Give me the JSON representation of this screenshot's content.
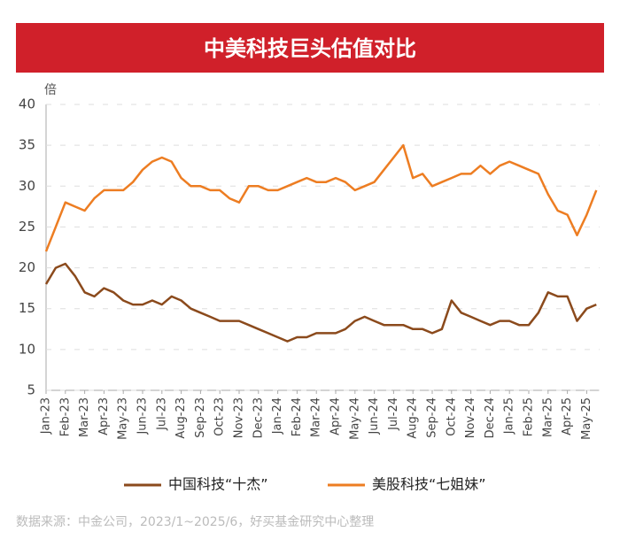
{
  "chart_data": {
    "type": "line",
    "title": "中美科技巨头估值对比",
    "y_unit": "倍",
    "source": "数据来源：中金公司，2023/1~2025/6，好买基金研究中心整理",
    "categories": [
      "Jan-23",
      null,
      "Feb-23",
      null,
      "Mar-23",
      null,
      "Apr-23",
      null,
      "May-23",
      null,
      "Jun-23",
      null,
      "Jul-23",
      null,
      "Aug-23",
      null,
      "Sep-23",
      null,
      "Oct-23",
      null,
      "Nov-23",
      null,
      "Dec-23",
      null,
      "Jan-24",
      null,
      "Feb-24",
      null,
      "Mar-24",
      null,
      "Apr-24",
      null,
      "May-24",
      null,
      "Jun-24",
      null,
      "Jul-24",
      null,
      "Aug-24",
      null,
      "Sep-24",
      null,
      "Oct-24",
      null,
      "Nov-24",
      null,
      "Dec-24",
      null,
      "Jan-25",
      null,
      "Feb-25",
      null,
      "Mar-25",
      null,
      "Apr-25",
      null,
      "May-25",
      null
    ],
    "series": [
      {
        "name": "中国科技“十杰”",
        "color": "#8b4a1c",
        "values": [
          18,
          20,
          20.5,
          19,
          17,
          16.5,
          17.5,
          17,
          16,
          15.5,
          15.5,
          16,
          15.5,
          16.5,
          16,
          15,
          14.5,
          14,
          13.5,
          13.5,
          13.5,
          13,
          12.5,
          12,
          11.5,
          11,
          11.5,
          11.5,
          12,
          12,
          12,
          12.5,
          13.5,
          14,
          13.5,
          13,
          13,
          13,
          12.5,
          12.5,
          12,
          12.5,
          16,
          14.5,
          14,
          13.5,
          13,
          13.5,
          13.5,
          13,
          13,
          14.5,
          17,
          16.5,
          16.5,
          13.5,
          15,
          15.5
        ]
      },
      {
        "name": "美股科技“七姐妹”",
        "color": "#ed7d22",
        "values": [
          22,
          25,
          28,
          27.5,
          27,
          28.5,
          29.5,
          29.5,
          29.5,
          30.5,
          32,
          33,
          33.5,
          33,
          31,
          30,
          30,
          29.5,
          29.5,
          28.5,
          28,
          30,
          30,
          29.5,
          29.5,
          30,
          30.5,
          31,
          30.5,
          30.5,
          31,
          30.5,
          29.5,
          30,
          30.5,
          32,
          33.5,
          35,
          31,
          31.5,
          30,
          30.5,
          31,
          31.5,
          31.5,
          32.5,
          31.5,
          32.5,
          33,
          32.5,
          32,
          31.5,
          29,
          27,
          26.5,
          24,
          26.5,
          29.5
        ]
      }
    ],
    "ylim": [
      5,
      40
    ],
    "yticks": [
      5,
      10,
      15,
      20,
      25,
      30,
      35,
      40
    ],
    "grid": true
  }
}
